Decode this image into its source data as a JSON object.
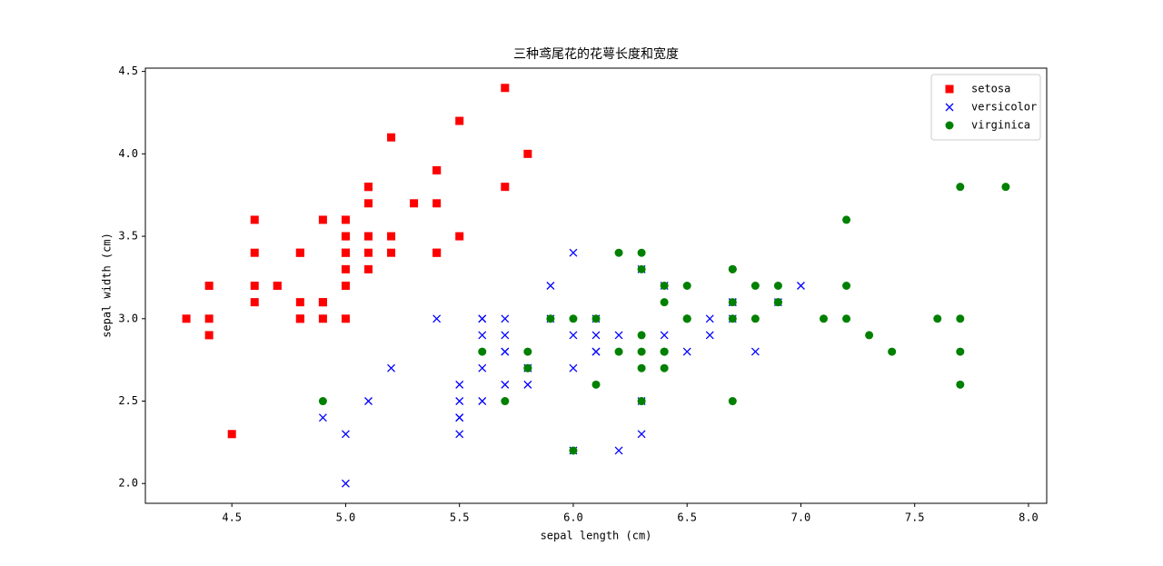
{
  "chart_data": {
    "type": "scatter",
    "title": "三种鸢尾花的花萼长度和宽度",
    "xlabel": "sepal length (cm)",
    "ylabel": "sepal width (cm)",
    "xlim": [
      4.12,
      8.08
    ],
    "ylim": [
      1.88,
      4.52
    ],
    "xticks": [
      4.5,
      {
        "value": 5,
        "label": "5.0"
      },
      5.5,
      {
        "value": 6,
        "label": "6.0"
      },
      6.5,
      {
        "value": 7,
        "label": "7.0"
      },
      7.5,
      {
        "value": 8,
        "label": "8.0"
      }
    ],
    "yticks": [
      {
        "value": 2,
        "label": "2.0"
      },
      2.5,
      {
        "value": 3,
        "label": "3.0"
      },
      3.5,
      {
        "value": 4,
        "label": "4.0"
      },
      4.5
    ],
    "legend": "upper right",
    "series": [
      {
        "name": "setosa",
        "color": "#ff0000",
        "marker": "square",
        "x": [
          5.1,
          4.9,
          4.7,
          4.6,
          5.0,
          5.4,
          4.6,
          5.0,
          4.4,
          4.9,
          5.4,
          4.8,
          4.8,
          4.3,
          5.8,
          5.7,
          5.4,
          5.1,
          5.7,
          5.1,
          5.4,
          5.1,
          4.6,
          5.1,
          4.8,
          5.0,
          5.0,
          5.2,
          5.2,
          4.7,
          4.8,
          5.4,
          5.2,
          5.5,
          4.9,
          5.0,
          5.5,
          4.9,
          4.4,
          5.1,
          5.0,
          4.5,
          4.4,
          5.0,
          5.1,
          4.8,
          5.1,
          4.6,
          5.3,
          5.0
        ],
        "y": [
          3.5,
          3.0,
          3.2,
          3.1,
          3.6,
          3.9,
          3.4,
          3.4,
          2.9,
          3.1,
          3.7,
          3.4,
          3.0,
          3.0,
          4.0,
          4.4,
          3.9,
          3.5,
          3.8,
          3.8,
          3.4,
          3.7,
          3.6,
          3.3,
          3.4,
          3.0,
          3.4,
          3.5,
          3.4,
          3.2,
          3.1,
          3.4,
          4.1,
          4.2,
          3.1,
          3.2,
          3.5,
          3.6,
          3.0,
          3.4,
          3.5,
          2.3,
          3.2,
          3.5,
          3.8,
          3.0,
          3.8,
          3.2,
          3.7,
          3.3
        ]
      },
      {
        "name": "versicolor",
        "color": "#0000ff",
        "marker": "x",
        "x": [
          7.0,
          6.4,
          6.9,
          5.5,
          6.5,
          5.7,
          6.3,
          4.9,
          6.6,
          5.2,
          5.0,
          5.9,
          6.0,
          6.1,
          5.6,
          6.7,
          5.6,
          5.8,
          6.2,
          5.6,
          5.9,
          6.1,
          6.3,
          6.1,
          6.4,
          6.6,
          6.8,
          6.7,
          6.0,
          5.7,
          5.5,
          5.5,
          5.8,
          6.0,
          5.4,
          6.0,
          6.7,
          6.3,
          5.6,
          5.5,
          5.5,
          6.1,
          5.8,
          5.0,
          5.6,
          5.7,
          5.7,
          6.2,
          5.1,
          5.7
        ],
        "y": [
          3.2,
          3.2,
          3.1,
          2.3,
          2.8,
          2.8,
          3.3,
          2.4,
          2.9,
          2.7,
          2.0,
          3.0,
          2.2,
          2.9,
          2.9,
          3.1,
          3.0,
          2.7,
          2.2,
          2.5,
          3.2,
          2.8,
          2.5,
          2.8,
          2.9,
          3.0,
          2.8,
          3.0,
          2.9,
          2.6,
          2.4,
          2.4,
          2.7,
          2.7,
          3.0,
          3.4,
          3.1,
          2.3,
          3.0,
          2.5,
          2.6,
          3.0,
          2.6,
          2.3,
          2.7,
          3.0,
          2.9,
          2.9,
          2.5,
          2.8
        ]
      },
      {
        "name": "virginica",
        "color": "#008000",
        "marker": "circle",
        "x": [
          6.3,
          5.8,
          7.1,
          6.3,
          6.5,
          7.6,
          4.9,
          7.3,
          6.7,
          7.2,
          6.5,
          6.4,
          6.8,
          5.7,
          5.8,
          6.4,
          6.5,
          7.7,
          7.7,
          6.0,
          6.9,
          5.6,
          7.7,
          6.3,
          6.7,
          7.2,
          6.2,
          6.1,
          6.4,
          7.2,
          7.4,
          7.9,
          6.4,
          6.3,
          6.1,
          7.7,
          6.3,
          6.4,
          6.0,
          6.9,
          6.7,
          6.9,
          5.8,
          6.8,
          6.7,
          6.7,
          6.3,
          6.5,
          6.2,
          5.9
        ],
        "y": [
          3.3,
          2.7,
          3.0,
          2.9,
          3.0,
          3.0,
          2.5,
          2.9,
          2.5,
          3.6,
          3.2,
          2.7,
          3.0,
          2.5,
          2.8,
          3.2,
          3.0,
          3.8,
          2.6,
          2.2,
          3.2,
          2.8,
          2.8,
          2.7,
          3.3,
          3.2,
          2.8,
          3.0,
          2.8,
          3.0,
          2.8,
          3.8,
          2.8,
          2.8,
          2.6,
          3.0,
          3.4,
          3.1,
          3.0,
          3.1,
          3.1,
          3.1,
          2.7,
          3.2,
          3.3,
          3.0,
          2.5,
          3.0,
          3.4,
          3.0
        ]
      }
    ]
  }
}
